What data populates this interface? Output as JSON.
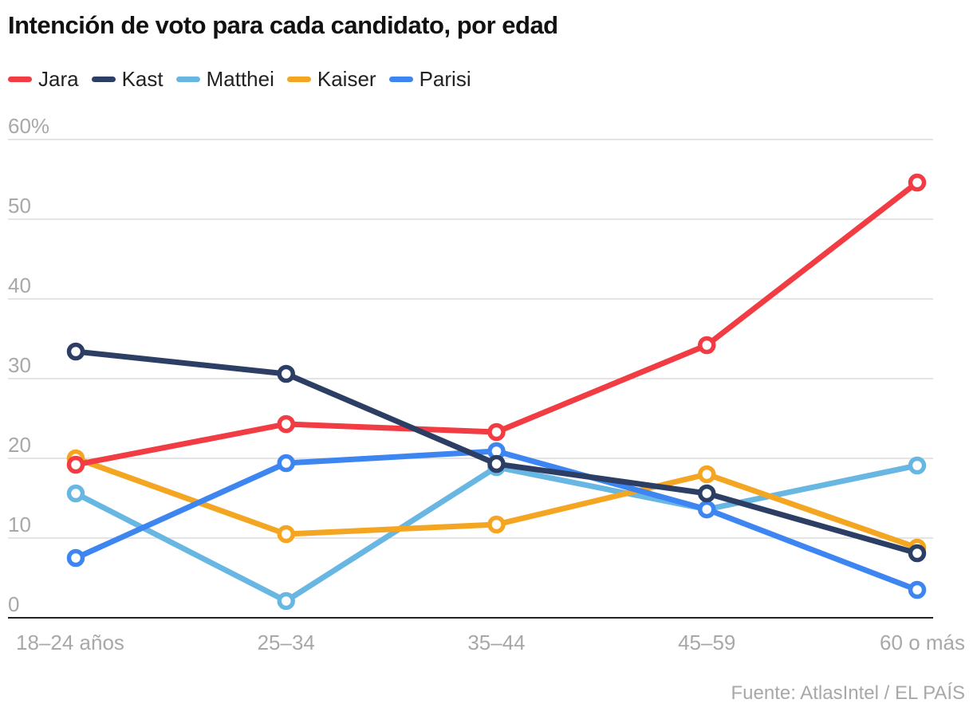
{
  "chart_data": {
    "type": "line",
    "title": "Intención de voto para cada candidato, por edad",
    "categories": [
      "18–24 años",
      "25–34",
      "35–44",
      "45–59",
      "60 o más"
    ],
    "ylim": [
      0,
      60
    ],
    "yticks": [
      0,
      10,
      20,
      30,
      40,
      50,
      60
    ],
    "ytick_labels": [
      "0",
      "10",
      "20",
      "30",
      "40",
      "50",
      "60%"
    ],
    "xlabel": "",
    "ylabel": "",
    "grid": true,
    "legend_position": "top-left",
    "series": [
      {
        "name": "Jara",
        "color": "#f23c43",
        "values": [
          19.2,
          24.3,
          23.3,
          34.2,
          54.6
        ]
      },
      {
        "name": "Kast",
        "color": "#2c3e63",
        "values": [
          33.4,
          30.6,
          19.3,
          15.6,
          8.1
        ]
      },
      {
        "name": "Matthei",
        "color": "#68b7e2",
        "values": [
          15.6,
          2.1,
          18.9,
          13.6,
          19.1
        ]
      },
      {
        "name": "Kaiser",
        "color": "#f4a623",
        "values": [
          20.0,
          10.5,
          11.7,
          18.0,
          8.8
        ]
      },
      {
        "name": "Parisi",
        "color": "#3d85f0",
        "values": [
          7.5,
          19.4,
          20.9,
          13.6,
          3.5
        ]
      }
    ],
    "draw_order": [
      "Matthei",
      "Kaiser",
      "Parisi",
      "Jara",
      "Kast"
    ],
    "source": "Fuente: AtlasIntel / EL PAÍS"
  }
}
